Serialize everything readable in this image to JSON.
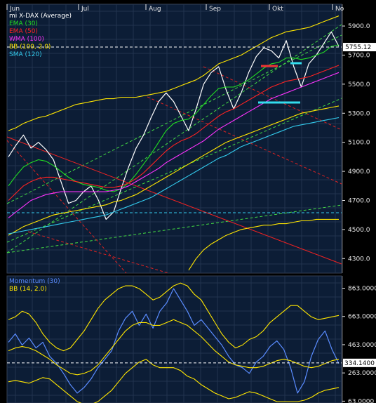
{
  "chart_data": [
    {
      "type": "line",
      "title": "mi X-DAX (Average)",
      "x_labels": [
        "Jun",
        "Jul",
        "Aug",
        "Sep",
        "Okt",
        "No"
      ],
      "ylim": [
        4200,
        6050
      ],
      "yticks": [
        4300,
        4500,
        4700,
        4900,
        5100,
        5300,
        5500,
        5700,
        5900
      ],
      "ytick_labels": [
        "4300.0",
        "4500.0",
        "4700.0",
        "4900.0",
        "5100.0",
        "5300.0",
        "5500.0",
        "5700.0",
        "5900.0"
      ],
      "last_value": 5755.12,
      "last_value_label": "5755.12",
      "grid": true,
      "legend_position": "top-left",
      "legend": [
        {
          "label": "mi X-DAX (Average)",
          "color": "#ffffff"
        },
        {
          "label": "EMA (30)",
          "color": "#22dd22"
        },
        {
          "label": "EMA (50)",
          "color": "#ff2222"
        },
        {
          "label": "WMA (100)",
          "color": "#ff33ff"
        },
        {
          "label": "BB (100, 2.0)",
          "color": "#ffe600"
        },
        {
          "label": "SMA (120)",
          "color": "#33ccee"
        }
      ],
      "series": [
        {
          "name": "mi X-DAX (Average)",
          "color": "#ffffff",
          "values": [
            5000,
            5080,
            5150,
            5060,
            5100,
            5050,
            4980,
            4830,
            4680,
            4700,
            4760,
            4800,
            4700,
            4570,
            4620,
            4780,
            4930,
            5060,
            5150,
            5270,
            5380,
            5440,
            5380,
            5280,
            5180,
            5330,
            5500,
            5580,
            5620,
            5460,
            5330,
            5440,
            5580,
            5690,
            5750,
            5730,
            5680,
            5800,
            5620,
            5480,
            5640,
            5700,
            5780,
            5860,
            5760
          ]
        },
        {
          "name": "EMA (30)",
          "color": "#22dd22",
          "values": [
            4800,
            4870,
            4930,
            4960,
            4980,
            4970,
            4940,
            4900,
            4860,
            4830,
            4810,
            4800,
            4790,
            4770,
            4760,
            4780,
            4820,
            4880,
            4950,
            5020,
            5100,
            5180,
            5230,
            5250,
            5260,
            5300,
            5360,
            5420,
            5470,
            5480,
            5480,
            5500,
            5530,
            5570,
            5610,
            5640,
            5650,
            5680,
            5680,
            5670,
            5680,
            5700,
            5720,
            5760,
            5770
          ]
        },
        {
          "name": "EMA (50)",
          "color": "#ff2222",
          "values": [
            4700,
            4750,
            4800,
            4830,
            4850,
            4860,
            4860,
            4850,
            4840,
            4830,
            4820,
            4810,
            4800,
            4790,
            4790,
            4800,
            4820,
            4850,
            4890,
            4940,
            4990,
            5040,
            5080,
            5110,
            5130,
            5160,
            5200,
            5240,
            5280,
            5310,
            5330,
            5360,
            5390,
            5420,
            5450,
            5480,
            5500,
            5520,
            5530,
            5540,
            5550,
            5570,
            5590,
            5610,
            5630
          ]
        },
        {
          "name": "WMA (100)",
          "color": "#ff33ff",
          "values": [
            4580,
            4620,
            4660,
            4700,
            4720,
            4740,
            4750,
            4760,
            4760,
            4760,
            4760,
            4760,
            4760,
            4760,
            4770,
            4780,
            4800,
            4830,
            4860,
            4890,
            4920,
            4960,
            4990,
            5020,
            5050,
            5080,
            5110,
            5150,
            5190,
            5220,
            5250,
            5280,
            5310,
            5340,
            5370,
            5400,
            5420,
            5440,
            5460,
            5480,
            5500,
            5520,
            5540,
            5560,
            5580
          ]
        },
        {
          "name": "BB (100, 2.0) upper",
          "color": "#ffe600",
          "values": [
            5180,
            5200,
            5230,
            5250,
            5270,
            5280,
            5300,
            5320,
            5340,
            5360,
            5370,
            5380,
            5390,
            5400,
            5400,
            5410,
            5410,
            5410,
            5420,
            5430,
            5440,
            5450,
            5470,
            5490,
            5510,
            5530,
            5560,
            5600,
            5640,
            5660,
            5680,
            5700,
            5730,
            5760,
            5790,
            5820,
            5840,
            5860,
            5870,
            5880,
            5890,
            5910,
            5930,
            5950,
            5970
          ]
        },
        {
          "name": "BB (100, 2.0) middle",
          "color": "#ffe600",
          "values": [
            4460,
            4490,
            4520,
            4540,
            4560,
            4580,
            4600,
            4610,
            4620,
            4630,
            4640,
            4650,
            4660,
            4670,
            4690,
            4700,
            4720,
            4740,
            4770,
            4800,
            4830,
            4860,
            4890,
            4920,
            4950,
            4980,
            5010,
            5040,
            5070,
            5100,
            5120,
            5140,
            5160,
            5180,
            5200,
            5220,
            5240,
            5260,
            5280,
            5300,
            5310,
            5320,
            5330,
            5340,
            5350
          ]
        },
        {
          "name": "BB (100, 2.0) lower",
          "color": "#ffe600",
          "values": [
            null,
            null,
            null,
            null,
            null,
            null,
            null,
            null,
            null,
            null,
            null,
            null,
            null,
            null,
            null,
            null,
            null,
            null,
            null,
            null,
            null,
            null,
            null,
            null,
            4220,
            4300,
            4360,
            4400,
            4430,
            4460,
            4480,
            4500,
            4510,
            4520,
            4530,
            4530,
            4540,
            4540,
            4550,
            4560,
            4560,
            4570,
            4570,
            4570,
            4570
          ]
        },
        {
          "name": "SMA (120)",
          "color": "#33ccee",
          "values": [
            4470,
            4480,
            4490,
            4500,
            4510,
            4520,
            4530,
            4540,
            4550,
            4560,
            4570,
            4580,
            4590,
            4600,
            4620,
            4640,
            4660,
            4680,
            4700,
            4720,
            4750,
            4780,
            4810,
            4840,
            4870,
            4900,
            4930,
            4960,
            4990,
            5010,
            5040,
            5070,
            5090,
            5110,
            5130,
            5150,
            5170,
            5190,
            5210,
            5220,
            5230,
            5240,
            5250,
            5260,
            5270
          ]
        }
      ]
    },
    {
      "type": "line",
      "title": "Momentum (30)",
      "ylim": [
        50,
        950
      ],
      "yticks": [
        63,
        263,
        463,
        663,
        863
      ],
      "ytick_labels": [
        "63.0000",
        "263.0000",
        "463.0000",
        "663.0000",
        "863.0000"
      ],
      "last_value": 334.14,
      "last_value_label": "334.1400",
      "grid": true,
      "legend_position": "top-left",
      "legend": [
        {
          "label": "Momentum (30)",
          "color": "#5a8cff"
        },
        {
          "label": "BB (14, 2.0)",
          "color": "#ffe600"
        }
      ],
      "series": [
        {
          "name": "Momentum (30)",
          "color": "#5a8cff",
          "values": [
            480,
            540,
            460,
            510,
            440,
            480,
            380,
            330,
            260,
            180,
            120,
            160,
            220,
            300,
            360,
            420,
            560,
            650,
            700,
            600,
            680,
            580,
            700,
            760,
            860,
            780,
            700,
            600,
            640,
            580,
            520,
            460,
            380,
            320,
            300,
            260,
            340,
            380,
            450,
            490,
            430,
            300,
            120,
            200,
            380,
            500,
            560,
            430,
            330
          ]
        },
        {
          "name": "BB (14, 2.0) upper",
          "color": "#ffe600",
          "values": [
            640,
            660,
            700,
            680,
            620,
            540,
            480,
            440,
            420,
            440,
            500,
            560,
            640,
            720,
            780,
            820,
            860,
            880,
            880,
            860,
            820,
            780,
            800,
            840,
            880,
            900,
            880,
            820,
            780,
            700,
            620,
            540,
            480,
            440,
            460,
            500,
            520,
            560,
            620,
            660,
            700,
            740,
            740,
            700,
            660,
            640,
            650,
            660,
            670
          ]
        },
        {
          "name": "BB (14, 2.0) middle",
          "color": "#ffe600",
          "values": [
            420,
            440,
            450,
            440,
            420,
            390,
            360,
            320,
            290,
            260,
            250,
            260,
            280,
            320,
            380,
            440,
            500,
            560,
            600,
            620,
            620,
            600,
            600,
            620,
            640,
            620,
            600,
            560,
            520,
            470,
            420,
            380,
            340,
            320,
            310,
            300,
            300,
            310,
            330,
            350,
            360,
            350,
            330,
            310,
            300,
            310,
            330,
            350,
            360
          ]
        },
        {
          "name": "BB (14, 2.0) lower",
          "color": "#ffe600",
          "values": [
            200,
            210,
            200,
            190,
            210,
            230,
            220,
            180,
            140,
            100,
            60,
            40,
            40,
            60,
            100,
            140,
            200,
            260,
            300,
            340,
            360,
            320,
            300,
            300,
            300,
            280,
            240,
            220,
            180,
            150,
            120,
            100,
            80,
            90,
            110,
            130,
            120,
            100,
            80,
            60,
            60,
            60,
            60,
            70,
            90,
            120,
            140,
            150,
            160
          ]
        }
      ]
    }
  ]
}
